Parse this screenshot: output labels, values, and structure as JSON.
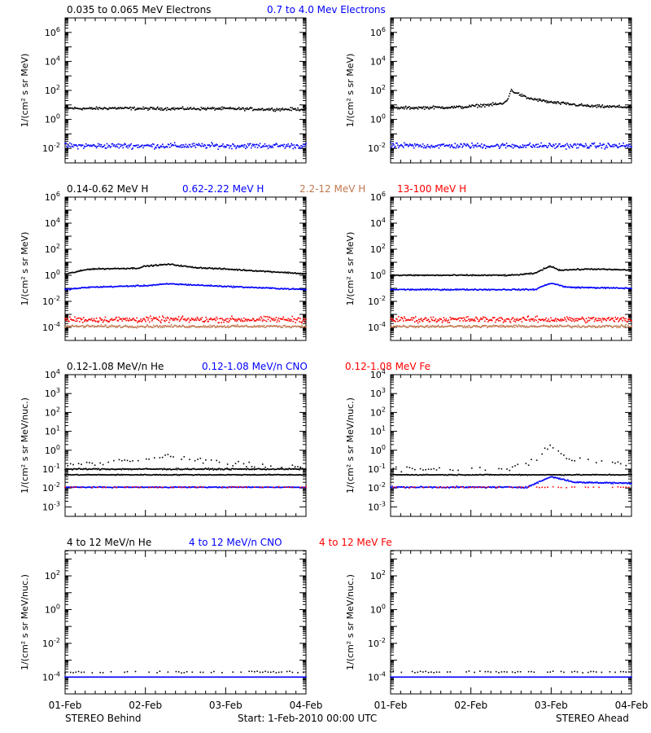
{
  "footer": {
    "left": "STEREO Behind",
    "center": "Start:  1-Feb-2010 00:00 UTC",
    "right": "STEREO Ahead"
  },
  "x_ticks": [
    "01-Feb",
    "02-Feb",
    "03-Feb",
    "04-Feb"
  ],
  "colors": {
    "black": "#000000",
    "blue": "#0000ff",
    "brown": "#c07850",
    "red": "#ff0000"
  },
  "chart_data": [
    {
      "type": "scatter",
      "row": 1,
      "legend": [
        {
          "label": "0.035 to 0.065 MeV Electrons",
          "color": "#000000"
        },
        {
          "label": "0.7 to 4.0 Mev Electrons",
          "color": "#0000ff"
        }
      ],
      "ylabel": "1/(cm² s sr MeV)",
      "yscale": "log",
      "ylim_exp": [
        -3,
        7
      ],
      "yticks": [
        {
          "exp": -2
        },
        {
          "exp": 0
        },
        {
          "exp": 2
        },
        {
          "exp": 4
        },
        {
          "exp": 6
        }
      ],
      "xlim_days": [
        0,
        3
      ],
      "panels": {
        "behind": {
          "series": [
            {
              "color": "#000000",
              "points": [
                [
                  0,
                  6
                ],
                [
                  0.3,
                  5.5
                ],
                [
                  0.6,
                  6
                ],
                [
                  1.0,
                  5.5
                ],
                [
                  1.5,
                  5.5
                ],
                [
                  2.0,
                  5.5
                ],
                [
                  2.5,
                  5
                ],
                [
                  3.0,
                  5
                ]
              ],
              "noise": 0.08
            },
            {
              "color": "#0000ff",
              "points": [
                [
                  0,
                  0.015
                ],
                [
                  1.5,
                  0.015
                ],
                [
                  3.0,
                  0.015
                ]
              ],
              "noise": 0.15
            }
          ]
        },
        "ahead": {
          "series": [
            {
              "color": "#000000",
              "points": [
                [
                  0,
                  6
                ],
                [
                  0.9,
                  7
                ],
                [
                  1.2,
                  10
                ],
                [
                  1.4,
                  12
                ],
                [
                  1.45,
                  20
                ],
                [
                  1.5,
                  100
                ],
                [
                  1.7,
                  30
                ],
                [
                  2.0,
                  15
                ],
                [
                  2.5,
                  8
                ],
                [
                  3.0,
                  7
                ]
              ],
              "noise": 0.08
            },
            {
              "color": "#0000ff",
              "points": [
                [
                  0,
                  0.015
                ],
                [
                  1.5,
                  0.015
                ],
                [
                  3.0,
                  0.015
                ]
              ],
              "noise": 0.15
            }
          ]
        }
      }
    },
    {
      "type": "scatter",
      "row": 2,
      "legend": [
        {
          "label": "0.14-0.62 MeV H",
          "color": "#000000"
        },
        {
          "label": "0.62-2.22 MeV H",
          "color": "#0000ff"
        },
        {
          "label": "2.2-12 MeV H",
          "color": "#c07850"
        },
        {
          "label": "13-100 MeV H",
          "color": "#ff0000"
        }
      ],
      "ylabel": "1/(cm² s sr MeV)",
      "yscale": "log",
      "ylim_exp": [
        -5,
        6
      ],
      "yticks": [
        {
          "exp": -4
        },
        {
          "exp": -2
        },
        {
          "exp": 0
        },
        {
          "exp": 2
        },
        {
          "exp": 4
        },
        {
          "exp": 6
        }
      ],
      "xlim_days": [
        0,
        3
      ],
      "panels": {
        "behind": {
          "series": [
            {
              "color": "#000000",
              "points": [
                [
                  0,
                  1.2
                ],
                [
                  0.3,
                  3
                ],
                [
                  0.9,
                  3.5
                ],
                [
                  1.0,
                  5
                ],
                [
                  1.3,
                  7
                ],
                [
                  1.6,
                  4
                ],
                [
                  2.0,
                  3
                ],
                [
                  2.5,
                  2
                ],
                [
                  3.0,
                  1.3
                ]
              ],
              "noise": 0.04
            },
            {
              "color": "#0000ff",
              "points": [
                [
                  0,
                  0.08
                ],
                [
                  0.3,
                  0.12
                ],
                [
                  1.0,
                  0.16
                ],
                [
                  1.3,
                  0.22
                ],
                [
                  2.0,
                  0.14
                ],
                [
                  3.0,
                  0.08
                ]
              ],
              "noise": 0.04
            },
            {
              "color": "#ff0000",
              "points": [
                [
                  0,
                  0.0004
                ],
                [
                  3.0,
                  0.0004
                ]
              ],
              "noise": 0.18
            },
            {
              "color": "#c07850",
              "points": [
                [
                  0,
                  0.00012
                ],
                [
                  3.0,
                  0.00012
                ]
              ],
              "noise": 0.08
            }
          ]
        },
        "ahead": {
          "series": [
            {
              "color": "#000000",
              "points": [
                [
                  0,
                  1.0
                ],
                [
                  1.5,
                  1.0
                ],
                [
                  1.8,
                  1.4
                ],
                [
                  1.9,
                  3
                ],
                [
                  2.0,
                  5
                ],
                [
                  2.1,
                  2.5
                ],
                [
                  2.5,
                  3
                ],
                [
                  3.0,
                  2.5
                ]
              ],
              "noise": 0.04
            },
            {
              "color": "#0000ff",
              "points": [
                [
                  0,
                  0.08
                ],
                [
                  1.8,
                  0.08
                ],
                [
                  1.9,
                  0.15
                ],
                [
                  2.0,
                  0.25
                ],
                [
                  2.2,
                  0.12
                ],
                [
                  3.0,
                  0.1
                ]
              ],
              "noise": 0.04
            },
            {
              "color": "#ff0000",
              "points": [
                [
                  0,
                  0.0004
                ],
                [
                  3.0,
                  0.0004
                ]
              ],
              "noise": 0.18
            },
            {
              "color": "#c07850",
              "points": [
                [
                  0,
                  0.00012
                ],
                [
                  3.0,
                  0.00012
                ]
              ],
              "noise": 0.08
            }
          ]
        }
      }
    },
    {
      "type": "scatter",
      "row": 3,
      "legend": [
        {
          "label": "0.12-1.08 MeV/n He",
          "color": "#000000"
        },
        {
          "label": "0.12-1.08 MeV/n CNO",
          "color": "#0000ff"
        },
        {
          "label": "0.12-1.08 MeV Fe",
          "color": "#ff0000"
        }
      ],
      "ylabel": "1/(cm² s sr MeV/nuc.)",
      "yscale": "log",
      "ylim_exp": [
        -3.5,
        4
      ],
      "yticks": [
        {
          "exp": -3
        },
        {
          "exp": -2
        },
        {
          "exp": -1
        },
        {
          "exp": 0
        },
        {
          "exp": 1
        },
        {
          "exp": 2
        },
        {
          "exp": 3
        },
        {
          "exp": 4
        }
      ],
      "xlim_days": [
        0,
        3
      ],
      "panels": {
        "behind": {
          "series": [
            {
              "color": "#000000",
              "points": [
                [
                  0,
                  0.05
                ],
                [
                  3.0,
                  0.05
                ]
              ],
              "noise": 0.02
            },
            {
              "color": "#000000",
              "points": [
                [
                  0,
                  0.1
                ],
                [
                  3.0,
                  0.1
                ]
              ],
              "noise": 0.03
            },
            {
              "color": "#000000",
              "points": [
                [
                  0.2,
                  0.18
                ],
                [
                  0.6,
                  0.25
                ],
                [
                  1.0,
                  0.3
                ],
                [
                  1.2,
                  0.5
                ],
                [
                  1.5,
                  0.35
                ],
                [
                  2.0,
                  0.2
                ],
                [
                  2.5,
                  0.15
                ],
                [
                  3.0,
                  0.12
                ]
              ],
              "noise": 0.12,
              "sparse": true
            },
            {
              "color": "#0000ff",
              "points": [
                [
                  0,
                  0.011
                ],
                [
                  3.0,
                  0.011
                ]
              ],
              "noise": 0.02
            },
            {
              "color": "#ff0000",
              "points": [
                [
                  0,
                  0.011
                ],
                [
                  3.0,
                  0.011
                ]
              ],
              "noise": 0.02,
              "sparse": true
            }
          ]
        },
        "ahead": {
          "series": [
            {
              "color": "#000000",
              "points": [
                [
                  0,
                  0.05
                ],
                [
                  3.0,
                  0.05
                ]
              ],
              "noise": 0.02
            },
            {
              "color": "#000000",
              "points": [
                [
                  0,
                  0.1
                ],
                [
                  1.5,
                  0.1
                ],
                [
                  1.8,
                  0.3
                ],
                [
                  1.95,
                  1.5
                ],
                [
                  2.05,
                  1.2
                ],
                [
                  2.2,
                  0.4
                ],
                [
                  2.5,
                  0.3
                ],
                [
                  3.0,
                  0.2
                ]
              ],
              "noise": 0.12,
              "sparse": true
            },
            {
              "color": "#0000ff",
              "points": [
                [
                  0,
                  0.011
                ],
                [
                  1.7,
                  0.011
                ],
                [
                  2.0,
                  0.04
                ],
                [
                  2.3,
                  0.02
                ],
                [
                  3.0,
                  0.018
                ]
              ],
              "noise": 0.03
            },
            {
              "color": "#ff0000",
              "points": [
                [
                  0,
                  0.011
                ],
                [
                  3.0,
                  0.011
                ]
              ],
              "noise": 0.02,
              "sparse": true
            }
          ]
        }
      }
    },
    {
      "type": "scatter",
      "row": 4,
      "legend": [
        {
          "label": "4 to 12 MeV/n He",
          "color": "#000000"
        },
        {
          "label": "4 to 12 MeV/n CNO",
          "color": "#0000ff"
        },
        {
          "label": "4 to 12 MeV Fe",
          "color": "#ff0000"
        }
      ],
      "ylabel": "1/(cm² s sr MeV/nuc.)",
      "yscale": "log",
      "ylim_exp": [
        -5,
        3.5
      ],
      "yticks": [
        {
          "exp": -4
        },
        {
          "exp": -2
        },
        {
          "exp": 0
        },
        {
          "exp": 2
        }
      ],
      "xlim_days": [
        0,
        3
      ],
      "panels": {
        "behind": {
          "series": [
            {
              "color": "#0000ff",
              "points": [
                [
                  0,
                  0.0001
                ],
                [
                  3.0,
                  0.0001
                ]
              ],
              "noise": 0.0
            },
            {
              "color": "#000000",
              "points": [
                [
                  0,
                  0.0002
                ],
                [
                  3.0,
                  0.0002
                ]
              ],
              "noise": 0.05,
              "sparse": true
            }
          ]
        },
        "ahead": {
          "series": [
            {
              "color": "#0000ff",
              "points": [
                [
                  0,
                  0.0001
                ],
                [
                  3.0,
                  0.0001
                ]
              ],
              "noise": 0.0
            },
            {
              "color": "#000000",
              "points": [
                [
                  0,
                  0.0002
                ],
                [
                  3.0,
                  0.0002
                ]
              ],
              "noise": 0.05,
              "sparse": true
            }
          ]
        }
      }
    }
  ]
}
